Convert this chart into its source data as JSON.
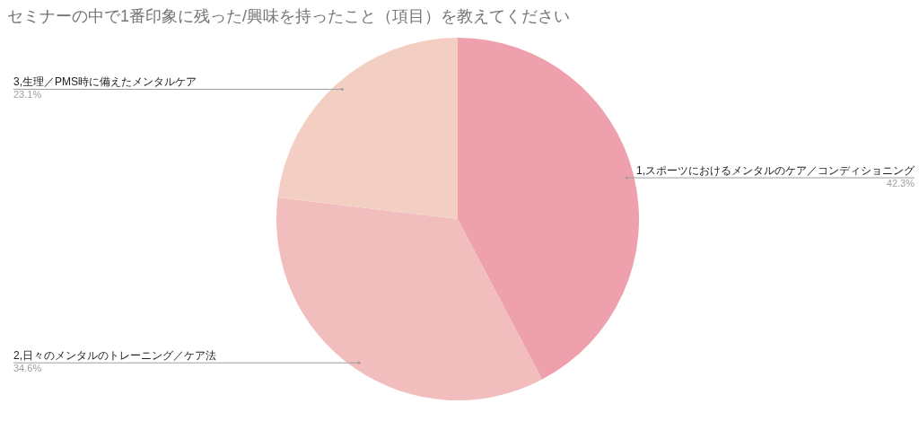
{
  "chart_data": {
    "type": "pie",
    "title": "セミナーの中で1番印象に残った/興味を持ったこと（項目）を教えてください",
    "categories": [
      "1,スポーツにおけるメンタルのケア／コンディショニング",
      "2,日々のメンタルのトレーニング／ケア法",
      "3,生理／PMS時に備えたメンタルケア"
    ],
    "values": [
      42.3,
      34.6,
      23.1
    ],
    "colors": [
      "#eea1ad",
      "#f1bebd",
      "#f3cfc3"
    ],
    "value_labels": [
      "42.3%",
      "34.6%",
      "23.1%"
    ]
  }
}
